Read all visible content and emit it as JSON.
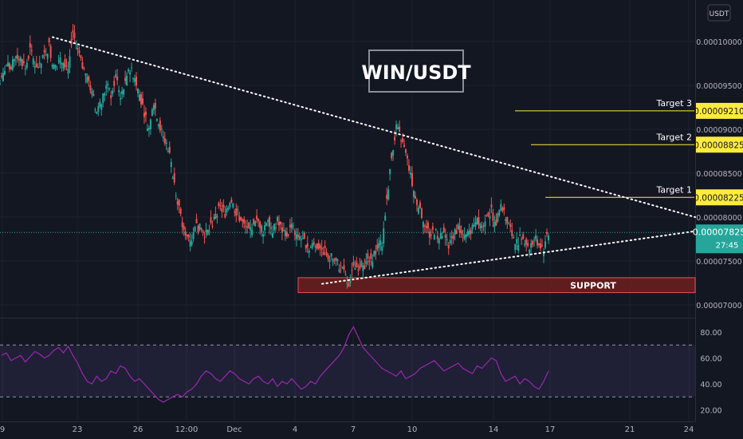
{
  "header": {
    "currency_button": "USDT"
  },
  "chart_data": {
    "type": "candlestick",
    "title": "WIN/USDT",
    "price_axis": {
      "ticks": [
        "0.00010000",
        "0.00009500",
        "0.00009000",
        "0.00008500",
        "0.00008000",
        "0.00007500",
        "0.00007000"
      ],
      "tick_values": [
        0.0001,
        9.5e-05,
        9e-05,
        8.5e-05,
        8e-05,
        7.5e-05,
        7e-05
      ]
    },
    "time_axis": {
      "ticks": [
        "9",
        "23",
        "26",
        "12:00",
        "Dec",
        "4",
        "7",
        "10",
        "14",
        "17",
        "21",
        "24"
      ]
    },
    "current_price": {
      "value": 7.825e-05,
      "label": "0.00007825",
      "countdown": "27:45"
    },
    "targets": [
      {
        "name": "Target 1",
        "value": 8.225e-05,
        "label": "0.00008225"
      },
      {
        "name": "Target 2",
        "value": 8.825e-05,
        "label": "0.00008825"
      },
      {
        "name": "Target 3",
        "value": 9.21e-05,
        "label": "0.00009210"
      }
    ],
    "support_zone": {
      "label": "SUPPORT",
      "top": 7.31e-05,
      "bottom": 7.14e-05
    },
    "trendlines": [
      {
        "name": "descending-resistance",
        "points": [
          [
            9.95e-05,
            0.0001005
          ],
          [
            8e-05,
            8e-05
          ]
        ]
      },
      {
        "name": "ascending-support",
        "points": [
          [
            7.24e-05,
            7.24e-05
          ],
          [
            7.84e-05,
            7.84e-05
          ]
        ]
      }
    ],
    "price_points": [
      9.55e-05,
      9.72e-05,
      9.68e-05,
      9.85e-05,
      9.8e-05,
      9.7e-05,
      9.9e-05,
      9.75e-05,
      9.7e-05,
      9.85e-05,
      9.95e-05,
      9.7e-05,
      9.75e-05,
      9.8e-05,
      9.7e-05,
      0.000101,
      9.9e-05,
      9.7e-05,
      9.6e-05,
      9.4e-05,
      9.2e-05,
      9.3e-05,
      9.5e-05,
      9.4e-05,
      9.6e-05,
      9.4e-05,
      9.5e-05,
      9.7e-05,
      9.6e-05,
      9.4e-05,
      9.2e-05,
      9e-05,
      9.3e-05,
      9.1e-05,
      8.9e-05,
      8.8e-05,
      8.5e-05,
      8.2e-05,
      7.9e-05,
      7.8e-05,
      7.75e-05,
      7.9e-05,
      7.85e-05,
      7.8e-05,
      7.9e-05,
      8e-05,
      8.1e-05,
      8.05e-05,
      8.2e-05,
      8.1e-05,
      8e-05,
      7.9e-05,
      7.85e-05,
      7.9e-05,
      7.95e-05,
      7.85e-05,
      8e-05,
      7.85e-05,
      7.95e-05,
      7.85e-05,
      7.8e-05,
      7.9e-05,
      7.8e-05,
      7.75e-05,
      7.7e-05,
      7.65e-05,
      7.7e-05,
      7.65e-05,
      7.6e-05,
      7.55e-05,
      7.5e-05,
      7.45e-05,
      7.35e-05,
      7.25e-05,
      7.4e-05,
      7.45e-05,
      7.45e-05,
      7.5e-05,
      7.55e-05,
      7.65e-05,
      7.7e-05,
      8.2e-05,
      8.7e-05,
      9e-05,
      8.9e-05,
      8.7e-05,
      8.5e-05,
      8.2e-05,
      8.1e-05,
      7.9e-05,
      7.8e-05,
      7.85e-05,
      7.75e-05,
      7.8e-05,
      7.7e-05,
      7.8e-05,
      7.9e-05,
      7.75e-05,
      7.8e-05,
      7.9e-05,
      8e-05,
      7.9e-05,
      8.05e-05,
      8.05e-05,
      7.95e-05,
      8.1e-05,
      8e-05,
      7.85e-05,
      7.7e-05,
      7.75e-05,
      7.75e-05,
      7.65e-05,
      7.75e-05,
      7.7e-05,
      7.65e-05,
      7.8e-05
    ],
    "rsi": {
      "ticks": [
        "80.00",
        "60.00",
        "40.00",
        "20.00"
      ],
      "tick_values": [
        80,
        60,
        40,
        20
      ],
      "upper_band": 70,
      "lower_band": 30,
      "values": [
        62,
        64,
        58,
        60,
        62,
        57,
        61,
        65,
        63,
        60,
        62,
        66,
        68,
        64,
        69,
        62,
        56,
        48,
        42,
        40,
        46,
        42,
        44,
        50,
        48,
        54,
        52,
        46,
        42,
        44,
        40,
        36,
        32,
        28,
        26,
        28,
        30,
        32,
        30,
        34,
        36,
        40,
        46,
        50,
        48,
        44,
        42,
        46,
        50,
        48,
        44,
        42,
        40,
        44,
        46,
        42,
        40,
        44,
        38,
        42,
        40,
        44,
        40,
        36,
        38,
        42,
        40,
        46,
        50,
        54,
        58,
        62,
        68,
        78,
        84,
        76,
        68,
        64,
        60,
        56,
        52,
        50,
        48,
        46,
        50,
        44,
        46,
        48,
        52,
        54,
        56,
        58,
        54,
        50,
        52,
        54,
        56,
        52,
        50,
        48,
        54,
        52,
        56,
        60,
        58,
        48,
        42,
        44,
        46,
        40,
        44,
        42,
        38,
        36,
        42,
        50
      ]
    }
  }
}
